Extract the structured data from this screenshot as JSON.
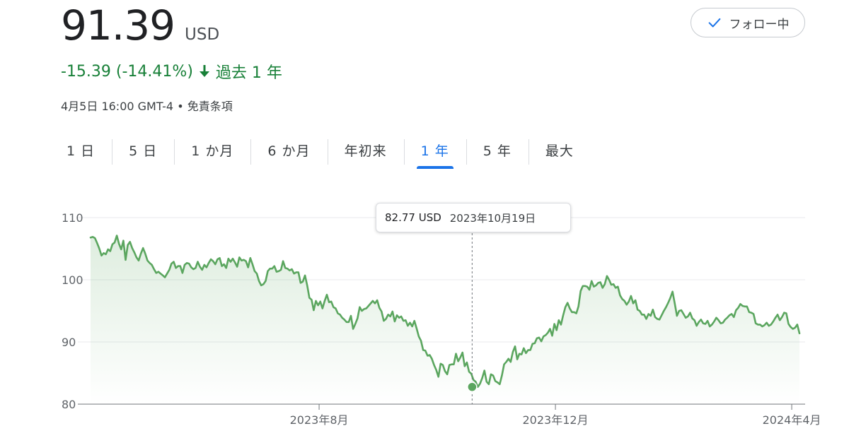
{
  "header": {
    "price": "91.39",
    "currency": "USD",
    "change": "-15.39 (-14.41%)",
    "period": "過去 1 年",
    "timestamp": "4月5日 16:00 GMT-4",
    "separator": "•",
    "disclaimer": "免責条項",
    "follow_label": "フォロー中"
  },
  "tabs": [
    {
      "label": "1 日",
      "active": false
    },
    {
      "label": "5 日",
      "active": false
    },
    {
      "label": "1 か月",
      "active": false
    },
    {
      "label": "6 か月",
      "active": false
    },
    {
      "label": "年初来",
      "active": false
    },
    {
      "label": "1 年",
      "active": true
    },
    {
      "label": "5 年",
      "active": false
    },
    {
      "label": "最大",
      "active": false
    }
  ],
  "tooltip": {
    "value": "82.77 USD",
    "date": "2023年10月19日"
  },
  "colors": {
    "line": "#5ba65f",
    "positive_text": "#188038",
    "accent": "#1a73e8"
  },
  "chart_data": {
    "type": "area",
    "x_start": "2023-04-05",
    "x_end": "2024-04-05",
    "values": [
      106.8,
      106.9,
      106.7,
      105.9,
      105.0,
      103.9,
      104.3,
      104.1,
      104.9,
      104.6,
      105.7,
      106.0,
      107.1,
      105.8,
      104.9,
      106.3,
      103.2,
      105.6,
      106.1,
      105.1,
      104.4,
      103.6,
      103.1,
      104.2,
      105.1,
      104.2,
      103.1,
      102.7,
      102.4,
      101.7,
      101.1,
      101.3,
      101.0,
      100.7,
      100.4,
      101.0,
      101.6,
      102.6,
      102.9,
      101.9,
      102.2,
      102.2,
      101.1,
      102.4,
      102.7,
      102.6,
      102.0,
      101.7,
      101.9,
      102.9,
      102.1,
      101.6,
      102.4,
      102.0,
      102.7,
      103.3,
      103.0,
      102.5,
      103.3,
      103.5,
      102.2,
      102.5,
      101.9,
      103.4,
      102.9,
      103.4,
      102.8,
      102.1,
      103.6,
      103.1,
      103.2,
      103.0,
      102.0,
      103.5,
      102.5,
      101.4,
      101.0,
      99.8,
      99.1,
      99.3,
      99.8,
      101.4,
      101.8,
      101.8,
      102.2,
      101.3,
      101.4,
      101.6,
      103.0,
      101.9,
      101.8,
      101.5,
      101.7,
      101.0,
      101.2,
      101.2,
      99.5,
      99.7,
      100.7,
      99.1,
      97.1,
      96.8,
      95.1,
      96.6,
      95.9,
      96.5,
      95.4,
      96.6,
      97.6,
      96.4,
      96.5,
      95.6,
      95.4,
      94.6,
      94.4,
      93.9,
      93.6,
      93.2,
      93.2,
      94.2,
      92.1,
      92.9,
      93.8,
      95.6,
      95.0,
      95.3,
      95.4,
      95.8,
      96.2,
      96.6,
      96.2,
      96.7,
      95.5,
      94.9,
      93.4,
      93.7,
      94.4,
      94.1,
      94.9,
      93.3,
      94.3,
      93.9,
      94.1,
      93.4,
      93.5,
      92.6,
      93.1,
      92.5,
      93.4,
      92.2,
      90.9,
      90.2,
      88.7,
      88.6,
      87.8,
      87.9,
      87.3,
      86.3,
      85.5,
      84.4,
      86.5,
      86.3,
      85.3,
      84.8,
      86.3,
      86.4,
      86.4,
      88.1,
      86.9,
      87.5,
      88.3,
      86.1,
      86.7,
      85.2,
      84.9,
      83.9,
      83.6,
      82.77,
      83.3,
      84.2,
      85.4,
      83.6,
      83.2,
      84.8,
      84.6,
      83.7,
      83.5,
      83.2,
      84.6,
      86.4,
      86.8,
      87.3,
      86.8,
      88.4,
      89.3,
      87.2,
      88.1,
      88.0,
      89.0,
      88.2,
      88.7,
      88.7,
      89.7,
      89.8,
      90.6,
      90.7,
      90.1,
      90.9,
      91.1,
      91.5,
      92.1,
      91.0,
      92.9,
      91.9,
      93.5,
      92.8,
      94.3,
      95.6,
      96.3,
      95.4,
      94.8,
      94.8,
      94.6,
      95.7,
      98.2,
      99.0,
      99.0,
      98.9,
      98.4,
      99.8,
      98.9,
      99.1,
      99.5,
      99.6,
      98.7,
      99.3,
      100.6,
      100.0,
      99.2,
      99.3,
      98.7,
      98.9,
      97.5,
      96.9,
      96.6,
      96.0,
      96.5,
      97.4,
      96.2,
      96.7,
      95.2,
      95.0,
      94.4,
      94.4,
      93.7,
      94.5,
      94.2,
      95.2,
      94.0,
      93.7,
      93.6,
      94.3,
      95.0,
      95.6,
      96.3,
      97.1,
      98.1,
      96.2,
      94.2,
      95.0,
      95.1,
      94.5,
      93.9,
      94.1,
      94.7,
      93.8,
      93.5,
      92.6,
      93.2,
      93.6,
      93.0,
      92.9,
      93.4,
      92.5,
      92.8,
      93.3,
      93.9,
      93.5,
      93.0,
      93.1,
      93.6,
      93.9,
      94.3,
      94.5,
      94.0,
      95.1,
      95.5,
      96.1,
      95.8,
      95.7,
      95.7,
      94.8,
      94.7,
      94.5,
      93.0,
      92.8,
      92.8,
      92.5,
      92.7,
      93.1,
      92.6,
      92.8,
      93.3,
      93.9,
      94.4,
      93.5,
      94.0,
      94.7,
      94.6,
      92.9,
      92.4,
      92.1,
      92.3,
      92.8,
      91.39
    ],
    "highlight": {
      "date": "2023-10-19",
      "value": 82.77
    },
    "ylim": [
      80,
      110
    ],
    "yticks": [
      80,
      90,
      100,
      110
    ],
    "xticks": [
      {
        "label": "2023年8月",
        "date": "2023-08-01"
      },
      {
        "label": "2023年12月",
        "date": "2023-12-01"
      },
      {
        "label": "2024年4月",
        "date": "2024-04-01"
      }
    ],
    "grid": true,
    "title": "",
    "xlabel": "",
    "ylabel": ""
  }
}
